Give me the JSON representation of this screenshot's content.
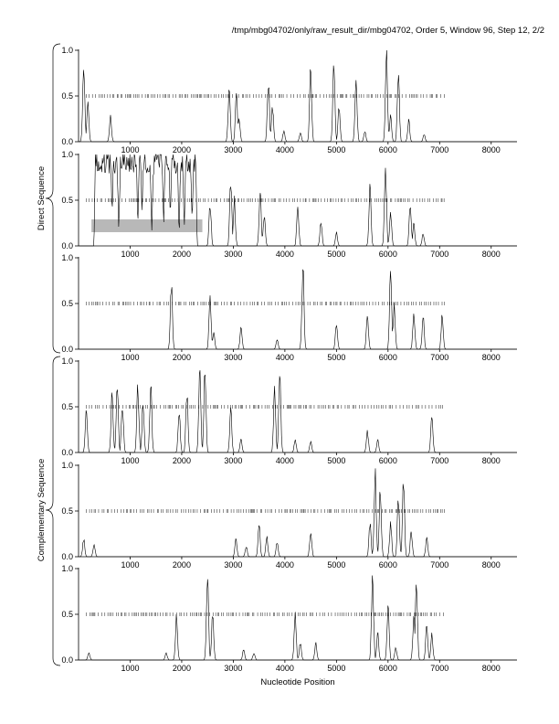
{
  "header": "/tmp/mbg04702/only/raw_result_dir/mbg04702, Order 5, Window 96, Step 12, 2/2",
  "xlabel": "Nucleotide Position",
  "group_labels": [
    "Direct Sequence",
    "Complementary Sequence"
  ],
  "colors": {
    "line": "#000000",
    "highlight": "#b8b8b8",
    "axis": "#000000"
  },
  "chart_data": [
    {
      "type": "line",
      "panel": 1,
      "group": "Direct Sequence",
      "xlim": [
        0,
        8500
      ],
      "ylim": [
        0,
        1.0
      ],
      "xticks": [
        1000,
        2000,
        3000,
        4000,
        5000,
        6000,
        7000,
        8000
      ],
      "yticks": [
        0.0,
        0.5,
        1.0
      ],
      "tick_row": {
        "y": 0.5,
        "from": 150,
        "to": 7100
      },
      "peaks": [
        [
          100,
          0.85
        ],
        [
          180,
          0.45
        ],
        [
          620,
          0.28
        ],
        [
          2920,
          0.65
        ],
        [
          3060,
          0.55
        ],
        [
          3110,
          0.3
        ],
        [
          3680,
          0.7
        ],
        [
          3760,
          0.4
        ],
        [
          3980,
          0.12
        ],
        [
          4300,
          0.1
        ],
        [
          4500,
          0.82
        ],
        [
          4950,
          0.95
        ],
        [
          5050,
          0.4
        ],
        [
          5380,
          0.72
        ],
        [
          5550,
          0.12
        ],
        [
          5970,
          1.0
        ],
        [
          6050,
          0.3
        ],
        [
          6200,
          0.8
        ],
        [
          6400,
          0.25
        ],
        [
          6700,
          0.08
        ]
      ]
    },
    {
      "type": "line",
      "panel": 2,
      "group": "Direct Sequence",
      "xlim": [
        0,
        8500
      ],
      "ylim": [
        0,
        1.0
      ],
      "xticks": [
        1000,
        2000,
        3000,
        4000,
        5000,
        6000,
        7000,
        8000
      ],
      "yticks": [
        0.0,
        0.5,
        1.0
      ],
      "tick_row": {
        "y": 0.5,
        "from": 150,
        "to": 7100
      },
      "highlight": {
        "x": [
          250,
          2400
        ],
        "y": [
          0.15,
          0.29
        ]
      },
      "plateau": {
        "x": [
          300,
          2300
        ],
        "y": 0.99
      },
      "peaks": [
        [
          2550,
          0.5
        ],
        [
          2950,
          0.78
        ],
        [
          3020,
          0.55
        ],
        [
          3520,
          0.65
        ],
        [
          3600,
          0.35
        ],
        [
          4250,
          0.45
        ],
        [
          4700,
          0.28
        ],
        [
          5000,
          0.15
        ],
        [
          5650,
          0.72
        ],
        [
          5950,
          0.92
        ],
        [
          6050,
          0.4
        ],
        [
          6430,
          0.5
        ],
        [
          6500,
          0.25
        ],
        [
          6680,
          0.15
        ]
      ]
    },
    {
      "type": "line",
      "panel": 3,
      "group": "Direct Sequence",
      "xlim": [
        0,
        8500
      ],
      "ylim": [
        0,
        1.0
      ],
      "xticks": [
        1000,
        2000,
        3000,
        4000,
        5000,
        6000,
        7000,
        8000
      ],
      "yticks": [
        0.0,
        0.5,
        1.0
      ],
      "tick_row": {
        "y": 0.5,
        "from": 150,
        "to": 7100
      },
      "peaks": [
        [
          1800,
          0.75
        ],
        [
          2550,
          0.58
        ],
        [
          2620,
          0.2
        ],
        [
          3150,
          0.25
        ],
        [
          3850,
          0.12
        ],
        [
          4350,
          0.98
        ],
        [
          5000,
          0.28
        ],
        [
          5600,
          0.4
        ],
        [
          6050,
          0.9
        ],
        [
          6120,
          0.5
        ],
        [
          6500,
          0.42
        ],
        [
          6680,
          0.38
        ],
        [
          7050,
          0.38
        ]
      ]
    },
    {
      "type": "line",
      "panel": 4,
      "group": "Complementary Sequence",
      "xlim": [
        0,
        8500
      ],
      "ylim": [
        0,
        1.0
      ],
      "xticks": [
        1000,
        2000,
        3000,
        4000,
        5000,
        6000,
        7000,
        8000
      ],
      "yticks": [
        0.0,
        0.5,
        1.0
      ],
      "tick_row": {
        "y": 0.5,
        "from": 150,
        "to": 7100
      },
      "peaks": [
        [
          150,
          0.5
        ],
        [
          650,
          0.72
        ],
        [
          750,
          0.78
        ],
        [
          850,
          0.55
        ],
        [
          1150,
          0.8
        ],
        [
          1250,
          0.58
        ],
        [
          1400,
          0.82
        ],
        [
          1950,
          0.48
        ],
        [
          2100,
          0.72
        ],
        [
          2350,
          0.98
        ],
        [
          2450,
          0.95
        ],
        [
          2950,
          0.5
        ],
        [
          3150,
          0.15
        ],
        [
          3800,
          0.7
        ],
        [
          3900,
          0.98
        ],
        [
          4200,
          0.15
        ],
        [
          4500,
          0.12
        ],
        [
          5600,
          0.25
        ],
        [
          5800,
          0.15
        ],
        [
          6850,
          0.45
        ]
      ]
    },
    {
      "type": "line",
      "panel": 5,
      "group": "Complementary Sequence",
      "xlim": [
        0,
        8500
      ],
      "ylim": [
        0,
        1.0
      ],
      "xticks": [
        1000,
        2000,
        3000,
        4000,
        5000,
        6000,
        7000,
        8000
      ],
      "yticks": [
        0.0,
        0.5,
        1.0
      ],
      "tick_row": {
        "y": 0.5,
        "from": 150,
        "to": 7100
      },
      "peaks": [
        [
          100,
          0.2
        ],
        [
          300,
          0.15
        ],
        [
          3050,
          0.2
        ],
        [
          3250,
          0.12
        ],
        [
          3500,
          0.35
        ],
        [
          3650,
          0.22
        ],
        [
          3850,
          0.18
        ],
        [
          4500,
          0.3
        ],
        [
          5650,
          0.4
        ],
        [
          5750,
          0.98
        ],
        [
          5850,
          0.8
        ],
        [
          6050,
          0.38
        ],
        [
          6200,
          0.7
        ],
        [
          6300,
          0.9
        ],
        [
          6450,
          0.3
        ],
        [
          6750,
          0.22
        ]
      ]
    },
    {
      "type": "line",
      "panel": 6,
      "group": "Complementary Sequence",
      "xlim": [
        0,
        8500
      ],
      "ylim": [
        0,
        1.0
      ],
      "xticks": [
        1000,
        2000,
        3000,
        4000,
        5000,
        6000,
        7000,
        8000
      ],
      "yticks": [
        0.0,
        0.5,
        1.0
      ],
      "tick_row": {
        "y": 0.5,
        "from": 150,
        "to": 7100
      },
      "peaks": [
        [
          200,
          0.08
        ],
        [
          1700,
          0.08
        ],
        [
          1900,
          0.5
        ],
        [
          2500,
          0.95
        ],
        [
          2600,
          0.55
        ],
        [
          3200,
          0.12
        ],
        [
          3400,
          0.08
        ],
        [
          4200,
          0.55
        ],
        [
          4300,
          0.2
        ],
        [
          4600,
          0.2
        ],
        [
          5700,
          0.98
        ],
        [
          5800,
          0.3
        ],
        [
          6000,
          0.65
        ],
        [
          6150,
          0.15
        ],
        [
          6500,
          0.5
        ],
        [
          6550,
          0.92
        ],
        [
          6750,
          0.45
        ],
        [
          6850,
          0.3
        ]
      ]
    }
  ]
}
